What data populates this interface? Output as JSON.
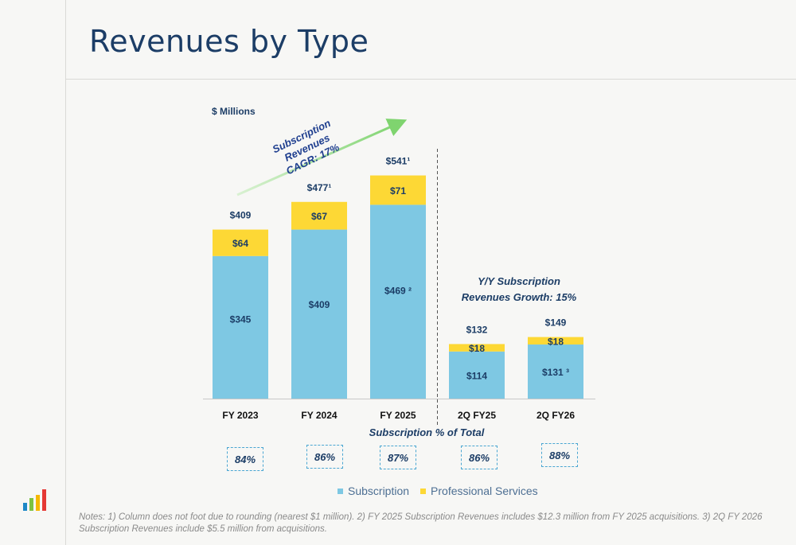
{
  "page": {
    "title": "Revenues by Type"
  },
  "brand": {
    "logo_colors": [
      "#1e88c7",
      "#7cc242",
      "#f5b800",
      "#e53935"
    ]
  },
  "colors": {
    "subscription": "#7ec8e3",
    "professional_services": "#fdd835",
    "label": "#1c3d66",
    "arrow": "#7fd46f"
  },
  "annotations": {
    "unit_label": "$ Millions",
    "cagr_line1": "Subscription Revenues",
    "cagr_line2": "CAGR: 17%",
    "yoy_line1": "Y/Y Subscription",
    "yoy_line2": "Revenues Growth: 15%"
  },
  "chart_data": {
    "type": "bar",
    "stacked": true,
    "categories": [
      "FY 2023",
      "FY 2024",
      "FY 2025",
      "2Q FY25",
      "2Q FY26"
    ],
    "series": [
      {
        "name": "Subscription",
        "values": [
          345,
          409,
          469,
          114,
          131
        ],
        "labels": [
          "$345",
          "$409",
          "$469 ²",
          "$114",
          "$131 ³"
        ]
      },
      {
        "name": "Professional Services",
        "values": [
          64,
          67,
          71,
          18,
          18
        ],
        "labels": [
          "$64",
          "$67",
          "$71",
          "$18",
          "$18"
        ]
      }
    ],
    "totals": [
      409,
      477,
      541,
      132,
      149
    ],
    "total_labels": [
      "$409",
      "$477¹",
      "$541¹",
      "$132",
      "$149"
    ],
    "ylim": [
      0,
      541
    ],
    "legend": "bottom-center",
    "divider_after_category": "FY 2025",
    "subscription_pct_title": "Subscription % of Total",
    "subscription_pct": [
      "84%",
      "86%",
      "87%",
      "86%",
      "88%"
    ]
  },
  "notes": "Notes: 1) Column does not foot due to rounding (nearest $1 million). 2) FY 2025 Subscription Revenues includes $12.3 million from FY 2025 acquisitions. 3) 2Q FY 2026 Subscription Revenues include $5.5 million from acquisitions."
}
